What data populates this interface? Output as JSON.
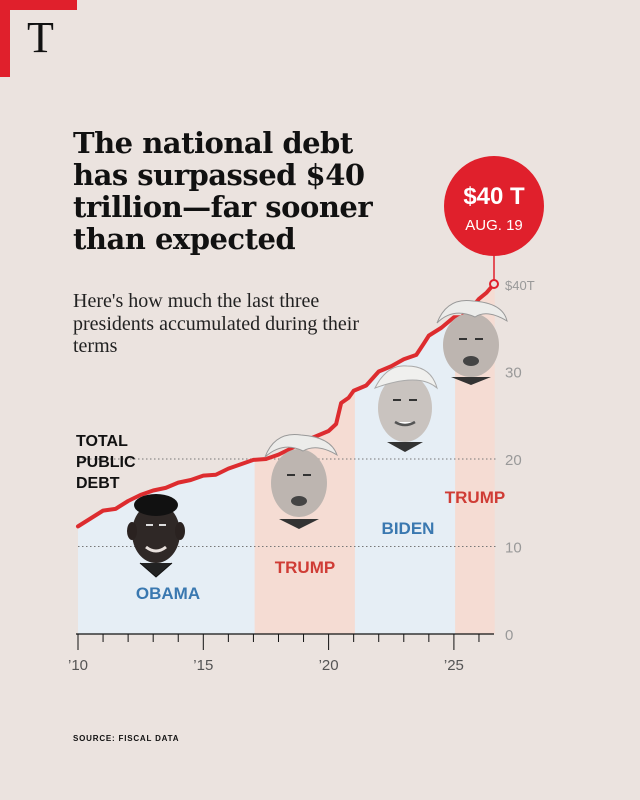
{
  "brand": {
    "logo_letter": "T"
  },
  "headline": "The national debt has surpassed $40 trillion—far sooner than expected",
  "subhead": "Here's how much the last three presidents accumulated during their terms",
  "source": "SOURCE: FISCAL DATA",
  "colors": {
    "accent_red": "#e0202c",
    "line_red": "#dd2c2f",
    "obama_fill": "#e6eef5",
    "biden_fill": "#e6eef5",
    "trump_fill": "#f5dcd3",
    "blue_label": "#3a78b0",
    "red_label": "#cf3c35"
  },
  "callout": {
    "value": "$40 T",
    "date": "AUG. 19"
  },
  "chart_data": {
    "type": "area",
    "ylabel": "TOTAL PUBLIC DEBT",
    "ylim": [
      0,
      40
    ],
    "xlim": [
      2010,
      2026.6
    ],
    "y_ticks": [
      {
        "value": 0,
        "label": "0"
      },
      {
        "value": 10,
        "label": "10"
      },
      {
        "value": 20,
        "label": "20"
      },
      {
        "value": 30,
        "label": "30"
      },
      {
        "value": 40,
        "label": "$40T"
      }
    ],
    "x_ticks": [
      {
        "value": 2010,
        "label": "’10"
      },
      {
        "value": 2015,
        "label": "’15"
      },
      {
        "value": 2020,
        "label": "’20"
      },
      {
        "value": 2025,
        "label": "’25"
      }
    ],
    "grid": "dotted horizontal at 10 and 20",
    "terms": [
      {
        "president": "OBAMA",
        "start": 2010,
        "end": 2017.05,
        "color": "blue"
      },
      {
        "president": "TRUMP",
        "start": 2017.05,
        "end": 2021.05,
        "color": "red"
      },
      {
        "president": "BIDEN",
        "start": 2021.05,
        "end": 2025.05,
        "color": "blue"
      },
      {
        "president": "TRUMP",
        "start": 2025.05,
        "end": 2026.63,
        "color": "red"
      }
    ],
    "series": [
      {
        "values": [
          [
            2010.0,
            12.3
          ],
          [
            2010.5,
            13.2
          ],
          [
            2011.0,
            14.1
          ],
          [
            2011.5,
            14.3
          ],
          [
            2012.0,
            15.2
          ],
          [
            2012.5,
            15.9
          ],
          [
            2013.0,
            16.4
          ],
          [
            2013.5,
            16.7
          ],
          [
            2014.0,
            17.3
          ],
          [
            2014.5,
            17.6
          ],
          [
            2015.0,
            18.1
          ],
          [
            2015.5,
            18.2
          ],
          [
            2016.0,
            18.9
          ],
          [
            2016.5,
            19.4
          ],
          [
            2017.0,
            19.9
          ],
          [
            2017.5,
            20.0
          ],
          [
            2018.0,
            20.5
          ],
          [
            2018.5,
            21.2
          ],
          [
            2019.0,
            22.0
          ],
          [
            2019.5,
            22.6
          ],
          [
            2020.0,
            23.2
          ],
          [
            2020.3,
            24.0
          ],
          [
            2020.5,
            26.4
          ],
          [
            2020.8,
            27.0
          ],
          [
            2021.0,
            27.8
          ],
          [
            2021.5,
            28.4
          ],
          [
            2022.0,
            30.0
          ],
          [
            2022.5,
            30.6
          ],
          [
            2023.0,
            31.4
          ],
          [
            2023.5,
            31.9
          ],
          [
            2023.8,
            33.2
          ],
          [
            2024.0,
            34.1
          ],
          [
            2024.5,
            35.0
          ],
          [
            2025.0,
            36.2
          ],
          [
            2025.3,
            36.2
          ],
          [
            2025.6,
            37.0
          ],
          [
            2025.8,
            37.6
          ],
          [
            2026.0,
            38.3
          ],
          [
            2026.3,
            39.0
          ],
          [
            2026.6,
            40.0
          ]
        ]
      }
    ]
  }
}
